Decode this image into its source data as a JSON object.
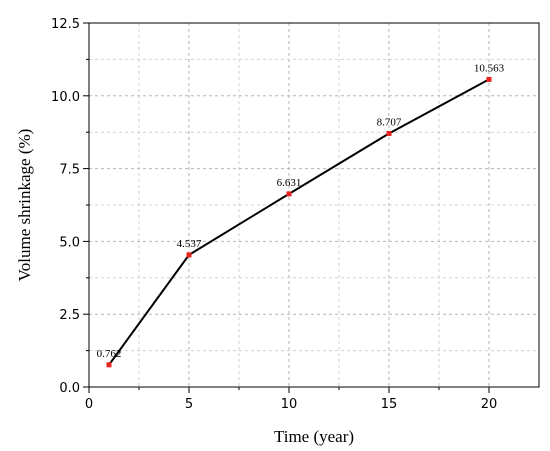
{
  "chart_data": {
    "type": "line",
    "title": "",
    "xlabel": "Time (year)",
    "ylabel": "Volume shrinkage (%)",
    "xlim": [
      0,
      22.5
    ],
    "ylim": [
      0,
      12.5
    ],
    "x_ticks": [
      "0",
      "5",
      "10",
      "15",
      "20"
    ],
    "y_ticks": [
      "0.0",
      "2.5",
      "5.0",
      "7.5",
      "10.0",
      "12.5"
    ],
    "grid": true,
    "legend": "none",
    "line_color": "#000000",
    "marker_color": "#e8231c",
    "series": [
      {
        "x": [
          1,
          5,
          10,
          15,
          20
        ],
        "y": [
          0.762,
          4.537,
          6.631,
          8.707,
          10.563
        ],
        "labels": [
          "0.762",
          "4.537",
          "6.631",
          "8.707",
          "10.563"
        ]
      }
    ]
  }
}
